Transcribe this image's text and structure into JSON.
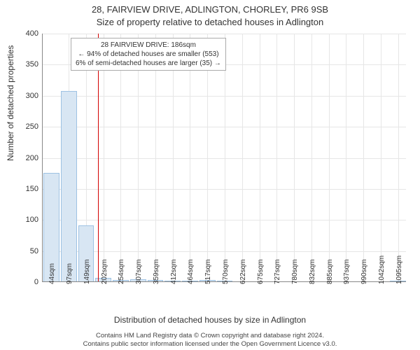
{
  "chart": {
    "type": "histogram",
    "title_line1": "28, FAIRVIEW DRIVE, ADLINGTON, CHORLEY, PR6 9SB",
    "title_line2": "Size of property relative to detached houses in Adlington",
    "title_fontsize": 13,
    "ylabel": "Number of detached properties",
    "xlabel": "Distribution of detached houses by size in Adlington",
    "label_fontsize": 12,
    "background_color": "#ffffff",
    "grid_color": "#e6e6e6",
    "axis_color": "#888888",
    "bar_fill": "#d8e6f3",
    "bar_stroke": "#9ec2e3",
    "reference_line_color": "#d40000",
    "ylim": [
      0,
      400
    ],
    "ytick_step": 50,
    "xticks": [
      "44sqm",
      "97sqm",
      "149sqm",
      "202sqm",
      "254sqm",
      "307sqm",
      "359sqm",
      "412sqm",
      "464sqm",
      "517sqm",
      "570sqm",
      "622sqm",
      "675sqm",
      "727sqm",
      "780sqm",
      "832sqm",
      "885sqm",
      "937sqm",
      "990sqm",
      "1042sqm",
      "1095sqm"
    ],
    "bars": [
      175,
      306,
      90,
      6,
      2,
      3,
      2,
      1,
      1,
      2,
      1,
      0,
      0,
      0,
      0,
      0,
      0,
      0,
      0,
      0,
      1
    ],
    "bar_width_ratio": 0.92,
    "reference_value_sqm": 186,
    "x_range_sqm": [
      44,
      1095
    ],
    "annotation": {
      "line1": "28 FAIRVIEW DRIVE: 186sqm",
      "line2": "← 94% of detached houses are smaller (553)",
      "line3": "6% of semi-detached houses are larger (35) →",
      "border_color": "#aaaaaa",
      "background": "#ffffff",
      "fontsize": 10
    }
  },
  "footer": {
    "line1": "Contains HM Land Registry data © Crown copyright and database right 2024.",
    "line2": "Contains public sector information licensed under the Open Government Licence v3.0.",
    "fontsize": 9.5
  }
}
